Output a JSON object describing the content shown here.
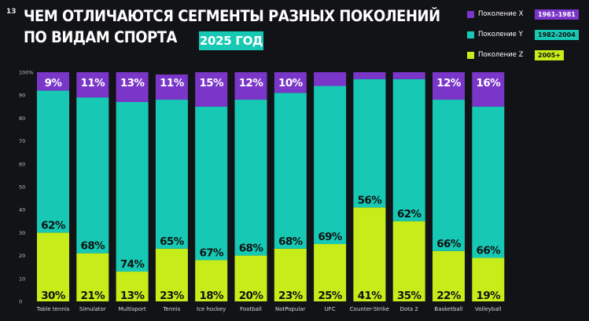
{
  "page_number": "13",
  "title_line1": "ЧЕМ ОТЛИЧАЮТСЯ СЕГМЕНТЫ РАЗНЫХ ПОКОЛЕНИЙ",
  "title_line2": "ПО ВИДАМ СПОРТА",
  "year_badge": "2025 ГОД",
  "colors": {
    "gen_x": "#7a35c9",
    "gen_y": "#17c9b4",
    "gen_z": "#c6ec1a",
    "background": "#121316"
  },
  "legend": [
    {
      "label": "Поколение X",
      "range": "1961-1981",
      "color": "#7a35c9"
    },
    {
      "label": "Поколение Y",
      "range": "1982-2004",
      "color": "#17c9b4"
    },
    {
      "label": "Поколение Z",
      "range": "2005+",
      "color": "#c6ec1a"
    }
  ],
  "chart_data": {
    "type": "bar",
    "stacked": true,
    "categories": [
      "Table tennis",
      "Simulator",
      "Multisport",
      "Tennis",
      "Ice hockey",
      "Football",
      "NotPopular",
      "UFC",
      "Counter-Strike",
      "Dota 2",
      "Basketball",
      "Volleyball"
    ],
    "series": [
      {
        "name": "Поколение Z",
        "values": [
          30,
          21,
          13,
          23,
          18,
          20,
          23,
          25,
          41,
          35,
          22,
          19
        ]
      },
      {
        "name": "Поколение Y",
        "values": [
          62,
          68,
          74,
          65,
          67,
          68,
          68,
          69,
          56,
          62,
          66,
          66
        ]
      },
      {
        "name": "Поколение X",
        "values": [
          9,
          11,
          13,
          11,
          15,
          12,
          10,
          6,
          3,
          3,
          12,
          16
        ]
      }
    ],
    "labels": {
      "z": [
        "30%",
        "21%",
        "13%",
        "23%",
        "18%",
        "20%",
        "23%",
        "25%",
        "41%",
        "35%",
        "22%",
        "19%"
      ],
      "y": [
        "62%",
        "68%",
        "74%",
        "65%",
        "67%",
        "68%",
        "68%",
        "69%",
        "56%",
        "62%",
        "66%",
        "66%"
      ],
      "x": [
        "9%",
        "11%",
        "13%",
        "11%",
        "15%",
        "12%",
        "10%",
        "",
        "",
        "",
        "12%",
        "16%"
      ]
    },
    "y_ticks": [
      "0",
      "10",
      "20",
      "30",
      "40",
      "50",
      "60",
      "70",
      "80",
      "90",
      "100%"
    ],
    "ylim": [
      0,
      100
    ]
  }
}
